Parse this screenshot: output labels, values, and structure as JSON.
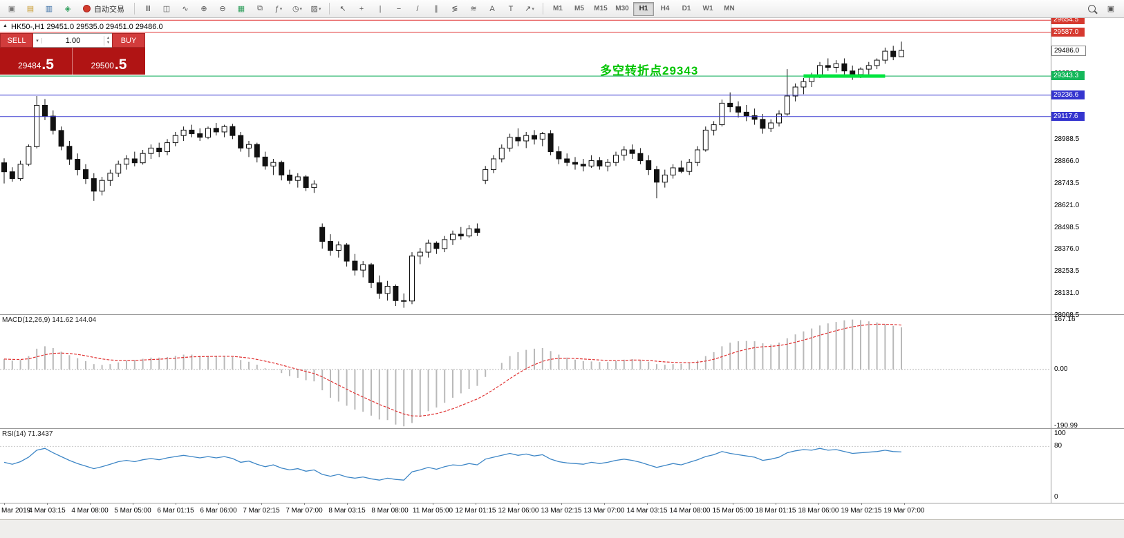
{
  "toolbar": {
    "auto_trading_label": "自动交易",
    "active_timeframe": "H1",
    "timeframes": [
      "M1",
      "M5",
      "M15",
      "M30",
      "H1",
      "H4",
      "D1",
      "W1",
      "MN"
    ],
    "left_icons": [
      {
        "name": "new-order-icon",
        "glyph": "▣",
        "color": "#777777"
      },
      {
        "name": "market-watch-icon",
        "glyph": "▤",
        "color": "#c99a2e"
      },
      {
        "name": "data-window-icon",
        "glyph": "▥",
        "color": "#3a6ea5"
      },
      {
        "name": "navigator-icon",
        "glyph": "◈",
        "color": "#2e9e5b"
      }
    ],
    "chart_icons": [
      {
        "name": "bar-chart-icon",
        "glyph": "lll"
      },
      {
        "name": "candlestick-chart-icon",
        "glyph": "◫"
      },
      {
        "name": "line-chart-icon",
        "glyph": "∿"
      },
      {
        "name": "zoom-in-icon",
        "glyph": "⊕"
      },
      {
        "name": "zoom-out-icon",
        "glyph": "⊖"
      },
      {
        "name": "grid-icon",
        "glyph": "▦",
        "color": "#2e9e5b"
      },
      {
        "name": "tile-windows-icon",
        "glyph": "⧉"
      },
      {
        "name": "indicators-icon",
        "glyph": "ƒ",
        "caret": true
      },
      {
        "name": "periods-icon",
        "glyph": "◷",
        "caret": true
      },
      {
        "name": "templates-icon",
        "glyph": "▨",
        "caret": true
      }
    ],
    "drawing_icons": [
      {
        "name": "cursor-icon",
        "glyph": "↖"
      },
      {
        "name": "crosshair-icon",
        "glyph": "+"
      },
      {
        "name": "vertical-line-icon",
        "glyph": "|"
      },
      {
        "name": "horizontal-line-icon",
        "glyph": "−"
      },
      {
        "name": "trendline-icon",
        "glyph": "/"
      },
      {
        "name": "channel-icon",
        "glyph": "∥"
      },
      {
        "name": "fibonacci-icon",
        "glyph": "≶"
      },
      {
        "name": "shapes-icon",
        "glyph": "≋"
      },
      {
        "name": "text-icon",
        "glyph": "A"
      },
      {
        "name": "label-icon",
        "glyph": "T"
      },
      {
        "name": "arrows-icon",
        "glyph": "↗",
        "caret": true
      }
    ],
    "right_icons": [
      {
        "name": "search-icon",
        "css": "mag"
      },
      {
        "name": "new-window-icon",
        "glyph": "▣"
      }
    ]
  },
  "trade_panel": {
    "sell_label": "SELL",
    "buy_label": "BUY",
    "volume": "1.00",
    "sell_price": "29484.5",
    "buy_price": "29500.5"
  },
  "chart": {
    "title_symbol": "HK50-,H1",
    "title_ohlc": "29451.0 29535.0 29451.0 29486.0",
    "annotation": {
      "text": "多空转折点29343",
      "color": "#00c400"
    },
    "axis_ticks": [
      "29356.0",
      "28988.5",
      "28866.0",
      "28743.5",
      "28621.0",
      "28498.5",
      "28376.0",
      "28253.5",
      "28131.0",
      "28008.5"
    ],
    "price_markers": [
      {
        "text": "29654.5",
        "value": 29654.5,
        "bg": "#d6392f",
        "fg": "#ffffff"
      },
      {
        "text": "29587.0",
        "value": 29587.0,
        "bg": "#d6392f",
        "fg": "#ffffff"
      },
      {
        "text": "29486.0",
        "value": 29486.0,
        "bg": "#ffffff",
        "fg": "#000000",
        "border": "#888888"
      },
      {
        "text": "29343.3",
        "value": 29343.3,
        "bg": "#14b75a",
        "fg": "#ffffff"
      },
      {
        "text": "29236.6",
        "value": 29236.6,
        "bg": "#3535cf",
        "fg": "#ffffff"
      },
      {
        "text": "29117.6",
        "value": 29117.6,
        "bg": "#3535cf",
        "fg": "#ffffff"
      }
    ]
  },
  "macd": {
    "label": "MACD(12,26,9) 141.62 144.04",
    "axis": [
      "167.16",
      "0.00",
      "-190.99"
    ]
  },
  "rsi": {
    "label": "RSI(14) 71.3437",
    "axis": [
      "100",
      "80",
      "0"
    ]
  },
  "chart_data": [
    {
      "type": "candlestick",
      "symbol": "HK50-",
      "timeframe": "H1",
      "last_ohlc": {
        "open": 29451.0,
        "high": 29535.0,
        "low": 29451.0,
        "close": 29486.0
      },
      "ylim": [
        28016,
        29667
      ],
      "levels": [
        {
          "price": 29654.5,
          "color": "#e03131",
          "width": 1
        },
        {
          "price": 29587.0,
          "color": "#e03131",
          "width": 1
        },
        {
          "price": 29343.3,
          "color": "#00a651",
          "width": 1
        },
        {
          "price": 29236.6,
          "color": "#3a3ad0",
          "width": 1
        },
        {
          "price": 29117.6,
          "color": "#3a3ad0",
          "width": 1
        }
      ],
      "highlight_segment": {
        "price": 29343.3,
        "from_index": 98,
        "to_index": 108,
        "color": "#00e53e",
        "thickness": 5
      },
      "x_labels": [
        "Mar 2019",
        "4 Mar 03:15",
        "4 Mar 08:00",
        "5 Mar 05:00",
        "6 Mar 01:15",
        "6 Mar 06:00",
        "7 Mar 02:15",
        "7 Mar 07:00",
        "8 Mar 03:15",
        "8 Mar 08:00",
        "11 Mar 05:00",
        "12 Mar 01:15",
        "12 Mar 06:00",
        "13 Mar 02:15",
        "13 Mar 07:00",
        "14 Mar 03:15",
        "14 Mar 08:00",
        "15 Mar 05:00",
        "18 Mar 01:15",
        "18 Mar 06:00",
        "19 Mar 02:15",
        "19 Mar 07:00"
      ],
      "ohlc": [
        [
          28860,
          28885,
          28745,
          28810
        ],
        [
          28810,
          28835,
          28755,
          28772
        ],
        [
          28772,
          28872,
          28760,
          28852
        ],
        [
          28852,
          28962,
          28842,
          28950
        ],
        [
          28950,
          29232,
          28940,
          29180
        ],
        [
          29180,
          29215,
          29098,
          29120
        ],
        [
          29120,
          29152,
          29018,
          29040
        ],
        [
          29040,
          29062,
          28930,
          28952
        ],
        [
          28952,
          28982,
          28848,
          28880
        ],
        [
          28880,
          28912,
          28790,
          28822
        ],
        [
          28822,
          28852,
          28742,
          28772
        ],
        [
          28772,
          28802,
          28648,
          28702
        ],
        [
          28702,
          28782,
          28678,
          28762
        ],
        [
          28762,
          28822,
          28732,
          28802
        ],
        [
          28802,
          28872,
          28782,
          28852
        ],
        [
          28852,
          28902,
          28822,
          28882
        ],
        [
          28882,
          28922,
          28840,
          28860
        ],
        [
          28860,
          28932,
          28850,
          28912
        ],
        [
          28912,
          28962,
          28882,
          28942
        ],
        [
          28942,
          28972,
          28892,
          28922
        ],
        [
          28922,
          28992,
          28902,
          28972
        ],
        [
          28972,
          29032,
          28952,
          29012
        ],
        [
          29012,
          29062,
          28982,
          29042
        ],
        [
          29042,
          29072,
          29002,
          29022
        ],
        [
          29022,
          29052,
          28982,
          29002
        ],
        [
          29002,
          29062,
          28992,
          29052
        ],
        [
          29052,
          29082,
          29012,
          29032
        ],
        [
          29032,
          29072,
          29002,
          29062
        ],
        [
          29062,
          29077,
          28992,
          29012
        ],
        [
          29012,
          29032,
          28922,
          28942
        ],
        [
          28942,
          28982,
          28892,
          28962
        ],
        [
          28962,
          28972,
          28862,
          28892
        ],
        [
          28892,
          28922,
          28822,
          28842
        ],
        [
          28842,
          28882,
          28792,
          28862
        ],
        [
          28862,
          28872,
          28762,
          28792
        ],
        [
          28792,
          28822,
          28742,
          28762
        ],
        [
          28762,
          28802,
          28722,
          28782
        ],
        [
          28782,
          28792,
          28702,
          28722
        ],
        [
          28722,
          28762,
          28692,
          28742
        ],
        [
          28500,
          28522,
          28382,
          28422
        ],
        [
          28422,
          28462,
          28342,
          28372
        ],
        [
          28372,
          28422,
          28332,
          28402
        ],
        [
          28402,
          28412,
          28282,
          28312
        ],
        [
          28312,
          28352,
          28232,
          28262
        ],
        [
          28262,
          28312,
          28222,
          28292
        ],
        [
          28292,
          28302,
          28162,
          28192
        ],
        [
          28192,
          28232,
          28102,
          28132
        ],
        [
          28132,
          28202,
          28092,
          28172
        ],
        [
          28172,
          28182,
          28062,
          28092
        ],
        [
          28092,
          28132,
          28052,
          28090
        ],
        [
          28090,
          28362,
          28072,
          28340
        ],
        [
          28340,
          28385,
          28295,
          28362
        ],
        [
          28362,
          28432,
          28332,
          28412
        ],
        [
          28412,
          28422,
          28352,
          28382
        ],
        [
          28382,
          28452,
          28362,
          28432
        ],
        [
          28432,
          28482,
          28402,
          28462
        ],
        [
          28462,
          28502,
          28432,
          28452
        ],
        [
          28452,
          28512,
          28442,
          28492
        ],
        [
          28492,
          28522,
          28452,
          28472
        ],
        [
          28762,
          28842,
          28742,
          28822
        ],
        [
          28822,
          28902,
          28802,
          28882
        ],
        [
          28882,
          28962,
          28862,
          28942
        ],
        [
          28942,
          29022,
          28922,
          29002
        ],
        [
          29002,
          29052,
          28952,
          28982
        ],
        [
          28982,
          29032,
          28942,
          29012
        ],
        [
          29012,
          29042,
          28962,
          28992
        ],
        [
          28992,
          29032,
          28952,
          29022
        ],
        [
          29022,
          29042,
          28902,
          28922
        ],
        [
          28922,
          28952,
          28852,
          28882
        ],
        [
          28882,
          28912,
          28842,
          28862
        ],
        [
          28862,
          28892,
          28822,
          28852
        ],
        [
          28852,
          28882,
          28812,
          28842
        ],
        [
          28842,
          28902,
          28832,
          28872
        ],
        [
          28872,
          28892,
          28822,
          28842
        ],
        [
          28842,
          28882,
          28812,
          28862
        ],
        [
          28862,
          28922,
          28842,
          28902
        ],
        [
          28902,
          28952,
          28872,
          28932
        ],
        [
          28932,
          28962,
          28882,
          28912
        ],
        [
          28912,
          28942,
          28852,
          28872
        ],
        [
          28872,
          28902,
          28792,
          28822
        ],
        [
          28822,
          28842,
          28662,
          28752
        ],
        [
          28752,
          28822,
          28722,
          28792
        ],
        [
          28792,
          28852,
          28772,
          28832
        ],
        [
          28832,
          28872,
          28802,
          28812
        ],
        [
          28812,
          28882,
          28792,
          28862
        ],
        [
          28862,
          28952,
          28842,
          28932
        ],
        [
          28932,
          29062,
          28922,
          29042
        ],
        [
          29042,
          29092,
          29012,
          29072
        ],
        [
          29072,
          29212,
          29062,
          29192
        ],
        [
          29192,
          29252,
          29142,
          29172
        ],
        [
          29172,
          29202,
          29112,
          29142
        ],
        [
          29142,
          29182,
          29092,
          29122
        ],
        [
          29122,
          29162,
          29072,
          29102
        ],
        [
          29102,
          29132,
          29022,
          29052
        ],
        [
          29052,
          29102,
          29032,
          29082
        ],
        [
          29082,
          29152,
          29062,
          29132
        ],
        [
          29132,
          29382,
          29122,
          29232
        ],
        [
          29232,
          29302,
          29202,
          29282
        ],
        [
          29282,
          29332,
          29242,
          29312
        ],
        [
          29312,
          29362,
          29282,
          29342
        ],
        [
          29342,
          29422,
          29332,
          29402
        ],
        [
          29402,
          29442,
          29372,
          29392
        ],
        [
          29392,
          29432,
          29362,
          29412
        ],
        [
          29412,
          29442,
          29352,
          29372
        ],
        [
          29372,
          29402,
          29322,
          29352
        ],
        [
          29352,
          29392,
          29332,
          29382
        ],
        [
          29382,
          29422,
          29352,
          29402
        ],
        [
          29402,
          29442,
          29382,
          29432
        ],
        [
          29432,
          29502,
          29412,
          29482
        ],
        [
          29482,
          29512,
          29432,
          29451
        ],
        [
          29451,
          29535,
          29451,
          29486
        ]
      ]
    },
    {
      "type": "bar",
      "name": "MACD(12,26,9)",
      "current": {
        "macd": 141.62,
        "signal": 144.04
      },
      "signal_period": 9,
      "ylim": [
        -190.99,
        167.16
      ],
      "values": [
        35,
        30,
        32,
        45,
        70,
        78,
        72,
        60,
        48,
        38,
        28,
        18,
        15,
        18,
        24,
        30,
        32,
        36,
        40,
        40,
        42,
        46,
        50,
        50,
        46,
        46,
        46,
        46,
        42,
        32,
        26,
        16,
        4,
        -2,
        -12,
        -22,
        -28,
        -36,
        -40,
        -70,
        -95,
        -108,
        -122,
        -135,
        -142,
        -155,
        -168,
        -170,
        -185,
        -191,
        -180,
        -160,
        -140,
        -128,
        -112,
        -95,
        -80,
        -65,
        -55,
        -25,
        0,
        22,
        45,
        58,
        66,
        70,
        72,
        62,
        50,
        40,
        33,
        28,
        27,
        25,
        25,
        28,
        33,
        35,
        32,
        26,
        18,
        16,
        18,
        19,
        22,
        30,
        45,
        58,
        78,
        90,
        95,
        96,
        95,
        88,
        84,
        90,
        105,
        118,
        128,
        138,
        148,
        155,
        160,
        165,
        168,
        166,
        162,
        158,
        152,
        147,
        141.62
      ]
    },
    {
      "type": "line",
      "name": "RSI(14)",
      "current": 71.3437,
      "ylim": [
        0,
        100
      ],
      "levels": [
        80
      ],
      "values": [
        55,
        52,
        56,
        63,
        74,
        77,
        70,
        64,
        58,
        53,
        49,
        45,
        48,
        52,
        56,
        58,
        56,
        59,
        61,
        59,
        62,
        64,
        66,
        64,
        62,
        64,
        62,
        64,
        61,
        55,
        57,
        52,
        48,
        51,
        46,
        43,
        45,
        41,
        43,
        36,
        33,
        36,
        32,
        30,
        32,
        29,
        27,
        30,
        28,
        27,
        40,
        43,
        47,
        44,
        48,
        51,
        50,
        53,
        51,
        60,
        63,
        66,
        69,
        66,
        68,
        65,
        67,
        60,
        56,
        54,
        53,
        52,
        55,
        53,
        55,
        58,
        60,
        58,
        55,
        51,
        47,
        50,
        53,
        51,
        55,
        59,
        64,
        67,
        72,
        69,
        67,
        65,
        63,
        58,
        60,
        63,
        70,
        73,
        75,
        74,
        77,
        74,
        75,
        72,
        69,
        70,
        71,
        72,
        74,
        72,
        71.34
      ]
    }
  ]
}
